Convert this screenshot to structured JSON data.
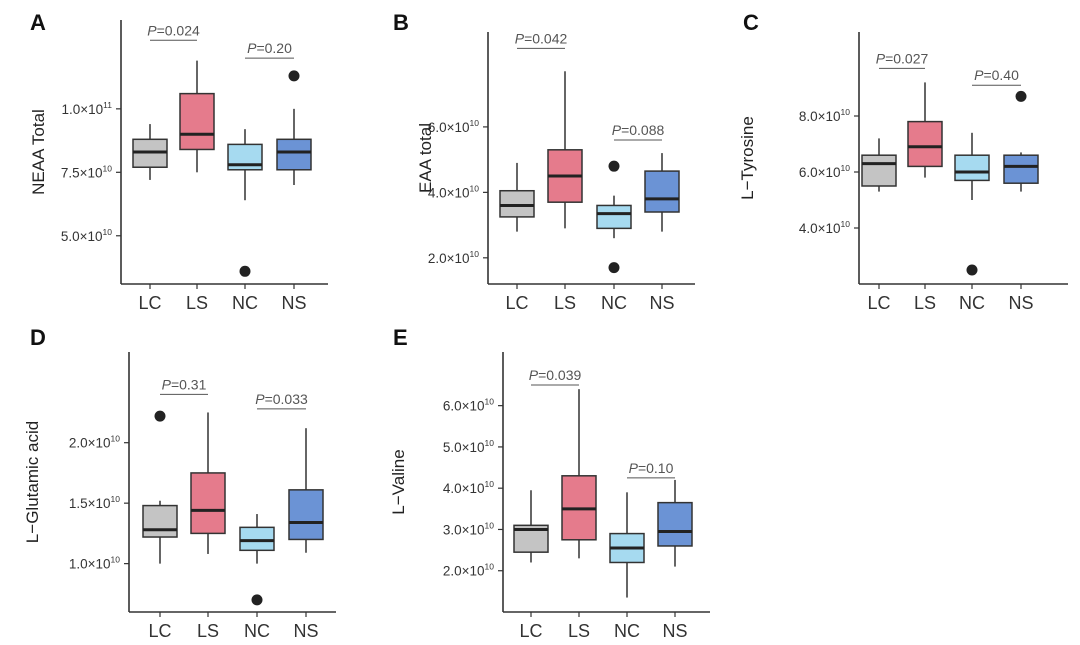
{
  "colors": {
    "LC": "#c4c4c4",
    "LS": "#e57b8c",
    "NC": "#a6daf0",
    "NS": "#6b93d5"
  },
  "chart_data": [
    {
      "type": "box",
      "panel": "A",
      "ylabel": "NEAA Total",
      "categories": [
        "LC",
        "LS",
        "NC",
        "NS"
      ],
      "ylim": [
        31000000000.0,
        135000000000.0
      ],
      "yticks": [
        {
          "value": 100000000000.0,
          "label": "1.0×10",
          "exp": "11"
        },
        {
          "value": 75000000000.0,
          "label": "7.5×10",
          "exp": "10"
        },
        {
          "value": 50000000000.0,
          "label": "5.0×10",
          "exp": "10"
        }
      ],
      "boxes": [
        {
          "group": "LC",
          "min": 72000000000.0,
          "q1": 77000000000.0,
          "median": 83000000000.0,
          "q3": 88000000000.0,
          "max": 94000000000.0,
          "outliers": []
        },
        {
          "group": "LS",
          "min": 75000000000.0,
          "q1": 84000000000.0,
          "median": 90000000000.0,
          "q3": 106000000000.0,
          "max": 119000000000.0,
          "outliers": []
        },
        {
          "group": "NC",
          "min": 64000000000.0,
          "q1": 76000000000.0,
          "median": 78000000000.0,
          "q3": 86000000000.0,
          "max": 92000000000.0,
          "outliers": [
            36000000000.0
          ]
        },
        {
          "group": "NS",
          "min": 70000000000.0,
          "q1": 76000000000.0,
          "median": 83000000000.0,
          "q3": 88000000000.0,
          "max": 100000000000.0,
          "outliers": [
            113000000000.0
          ]
        }
      ],
      "comparisons": [
        {
          "groups": [
            "LC",
            "LS"
          ],
          "p_letter": "P",
          "p_value": "=0.024",
          "y": 127000000000.0
        },
        {
          "groups": [
            "NC",
            "NS"
          ],
          "p_letter": "P",
          "p_value": "=0.20",
          "y": 120000000000.0
        }
      ]
    },
    {
      "type": "box",
      "panel": "B",
      "ylabel": "EAA total",
      "categories": [
        "LC",
        "LS",
        "NC",
        "NS"
      ],
      "ylim": [
        12000000000.0,
        89000000000.0
      ],
      "yticks": [
        {
          "value": 60000000000.0,
          "label": "6.0×10",
          "exp": "10"
        },
        {
          "value": 40000000000.0,
          "label": "4.0×10",
          "exp": "10"
        },
        {
          "value": 20000000000.0,
          "label": "2.0×10",
          "exp": "10"
        }
      ],
      "boxes": [
        {
          "group": "LC",
          "min": 28000000000.0,
          "q1": 32500000000.0,
          "median": 36000000000.0,
          "q3": 40500000000.0,
          "max": 49000000000.0,
          "outliers": []
        },
        {
          "group": "LS",
          "min": 29000000000.0,
          "q1": 37000000000.0,
          "median": 45000000000.0,
          "q3": 53000000000.0,
          "max": 77000000000.0,
          "outliers": []
        },
        {
          "group": "NC",
          "min": 26000000000.0,
          "q1": 29000000000.0,
          "median": 33500000000.0,
          "q3": 36000000000.0,
          "max": 39000000000.0,
          "outliers": [
            48000000000.0,
            17000000000.0
          ]
        },
        {
          "group": "NS",
          "min": 28000000000.0,
          "q1": 34000000000.0,
          "median": 38000000000.0,
          "q3": 46500000000.0,
          "max": 52000000000.0,
          "outliers": []
        }
      ],
      "comparisons": [
        {
          "groups": [
            "LC",
            "LS"
          ],
          "p_letter": "P",
          "p_value": "=0.042",
          "y": 84000000000.0
        },
        {
          "groups": [
            "NC",
            "NS"
          ],
          "p_letter": "P",
          "p_value": "=0.088",
          "y": 56000000000.0
        }
      ]
    },
    {
      "type": "box",
      "panel": "C",
      "ylabel": "L−Tyrosine",
      "categories": [
        "LC",
        "LS",
        "NC",
        "NS"
      ],
      "ylim": [
        20000000000.0,
        110000000000.0
      ],
      "yticks": [
        {
          "value": 80000000000.0,
          "label": "8.0×10",
          "exp": "10"
        },
        {
          "value": 60000000000.0,
          "label": "6.0×10",
          "exp": "10"
        },
        {
          "value": 40000000000.0,
          "label": "4.0×10",
          "exp": "10"
        }
      ],
      "boxes": [
        {
          "group": "LC",
          "min": 53000000000.0,
          "q1": 55000000000.0,
          "median": 63000000000.0,
          "q3": 66000000000.0,
          "max": 72000000000.0,
          "outliers": []
        },
        {
          "group": "LS",
          "min": 58000000000.0,
          "q1": 62000000000.0,
          "median": 69000000000.0,
          "q3": 78000000000.0,
          "max": 92000000000.0,
          "outliers": []
        },
        {
          "group": "NC",
          "min": 50000000000.0,
          "q1": 57000000000.0,
          "median": 60000000000.0,
          "q3": 66000000000.0,
          "max": 74000000000.0,
          "outliers": [
            25000000000.0
          ]
        },
        {
          "group": "NS",
          "min": 53000000000.0,
          "q1": 56000000000.0,
          "median": 62000000000.0,
          "q3": 66000000000.0,
          "max": 67000000000.0,
          "outliers": [
            87000000000.0
          ]
        }
      ],
      "comparisons": [
        {
          "groups": [
            "LC",
            "LS"
          ],
          "p_letter": "P",
          "p_value": "=0.027",
          "y": 97000000000.0
        },
        {
          "groups": [
            "NC",
            "NS"
          ],
          "p_letter": "P",
          "p_value": "=0.40",
          "y": 91000000000.0
        }
      ]
    },
    {
      "type": "box",
      "panel": "D",
      "ylabel": "L−Glutamic acid",
      "categories": [
        "LC",
        "LS",
        "NC",
        "NS"
      ],
      "ylim": [
        6000000000.0,
        27500000000.0
      ],
      "yticks": [
        {
          "value": 20000000000.0,
          "label": "2.0×10",
          "exp": "10"
        },
        {
          "value": 15000000000.0,
          "label": "1.5×10",
          "exp": "10"
        },
        {
          "value": 10000000000.0,
          "label": "1.0×10",
          "exp": "10"
        }
      ],
      "boxes": [
        {
          "group": "LC",
          "min": 10000000000.0,
          "q1": 12200000000.0,
          "median": 12800000000.0,
          "q3": 14800000000.0,
          "max": 15200000000.0,
          "outliers": [
            22200000000.0
          ]
        },
        {
          "group": "LS",
          "min": 10800000000.0,
          "q1": 12500000000.0,
          "median": 14400000000.0,
          "q3": 17500000000.0,
          "max": 22500000000.0,
          "outliers": []
        },
        {
          "group": "NC",
          "min": 10000000000.0,
          "q1": 11100000000.0,
          "median": 11900000000.0,
          "q3": 13000000000.0,
          "max": 14100000000.0,
          "outliers": [
            7000000000.0
          ]
        },
        {
          "group": "NS",
          "min": 10900000000.0,
          "q1": 12000000000.0,
          "median": 13400000000.0,
          "q3": 16100000000.0,
          "max": 21200000000.0,
          "outliers": []
        }
      ],
      "comparisons": [
        {
          "groups": [
            "LC",
            "LS"
          ],
          "p_letter": "P",
          "p_value": "=0.31",
          "y": 24000000000.0
        },
        {
          "groups": [
            "NC",
            "NS"
          ],
          "p_letter": "P",
          "p_value": "=0.033",
          "y": 22800000000.0
        }
      ]
    },
    {
      "type": "box",
      "panel": "E",
      "ylabel": "L−Valine",
      "categories": [
        "LC",
        "LS",
        "NC",
        "NS"
      ],
      "ylim": [
        10000000000.0,
        73000000000.0
      ],
      "yticks": [
        {
          "value": 60000000000.0,
          "label": "6.0×10",
          "exp": "10"
        },
        {
          "value": 50000000000.0,
          "label": "5.0×10",
          "exp": "10"
        },
        {
          "value": 40000000000.0,
          "label": "4.0×10",
          "exp": "10"
        },
        {
          "value": 30000000000.0,
          "label": "3.0×10",
          "exp": "10"
        },
        {
          "value": 20000000000.0,
          "label": "2.0×10",
          "exp": "10"
        }
      ],
      "boxes": [
        {
          "group": "LC",
          "min": 22000000000.0,
          "q1": 24500000000.0,
          "median": 30000000000.0,
          "q3": 31000000000.0,
          "max": 39500000000.0,
          "outliers": []
        },
        {
          "group": "LS",
          "min": 23000000000.0,
          "q1": 27500000000.0,
          "median": 35000000000.0,
          "q3": 43000000000.0,
          "max": 64000000000.0,
          "outliers": []
        },
        {
          "group": "NC",
          "min": 13500000000.0,
          "q1": 22000000000.0,
          "median": 25500000000.0,
          "q3": 29000000000.0,
          "max": 39000000000.0,
          "outliers": []
        },
        {
          "group": "NS",
          "min": 21000000000.0,
          "q1": 26000000000.0,
          "median": 29500000000.0,
          "q3": 36500000000.0,
          "max": 42000000000.0,
          "outliers": []
        }
      ],
      "comparisons": [
        {
          "groups": [
            "LC",
            "LS"
          ],
          "p_letter": "P",
          "p_value": "=0.039",
          "y": 65000000000.0
        },
        {
          "groups": [
            "NC",
            "NS"
          ],
          "p_letter": "P",
          "p_value": "=0.10",
          "y": 42500000000.0
        }
      ]
    }
  ]
}
